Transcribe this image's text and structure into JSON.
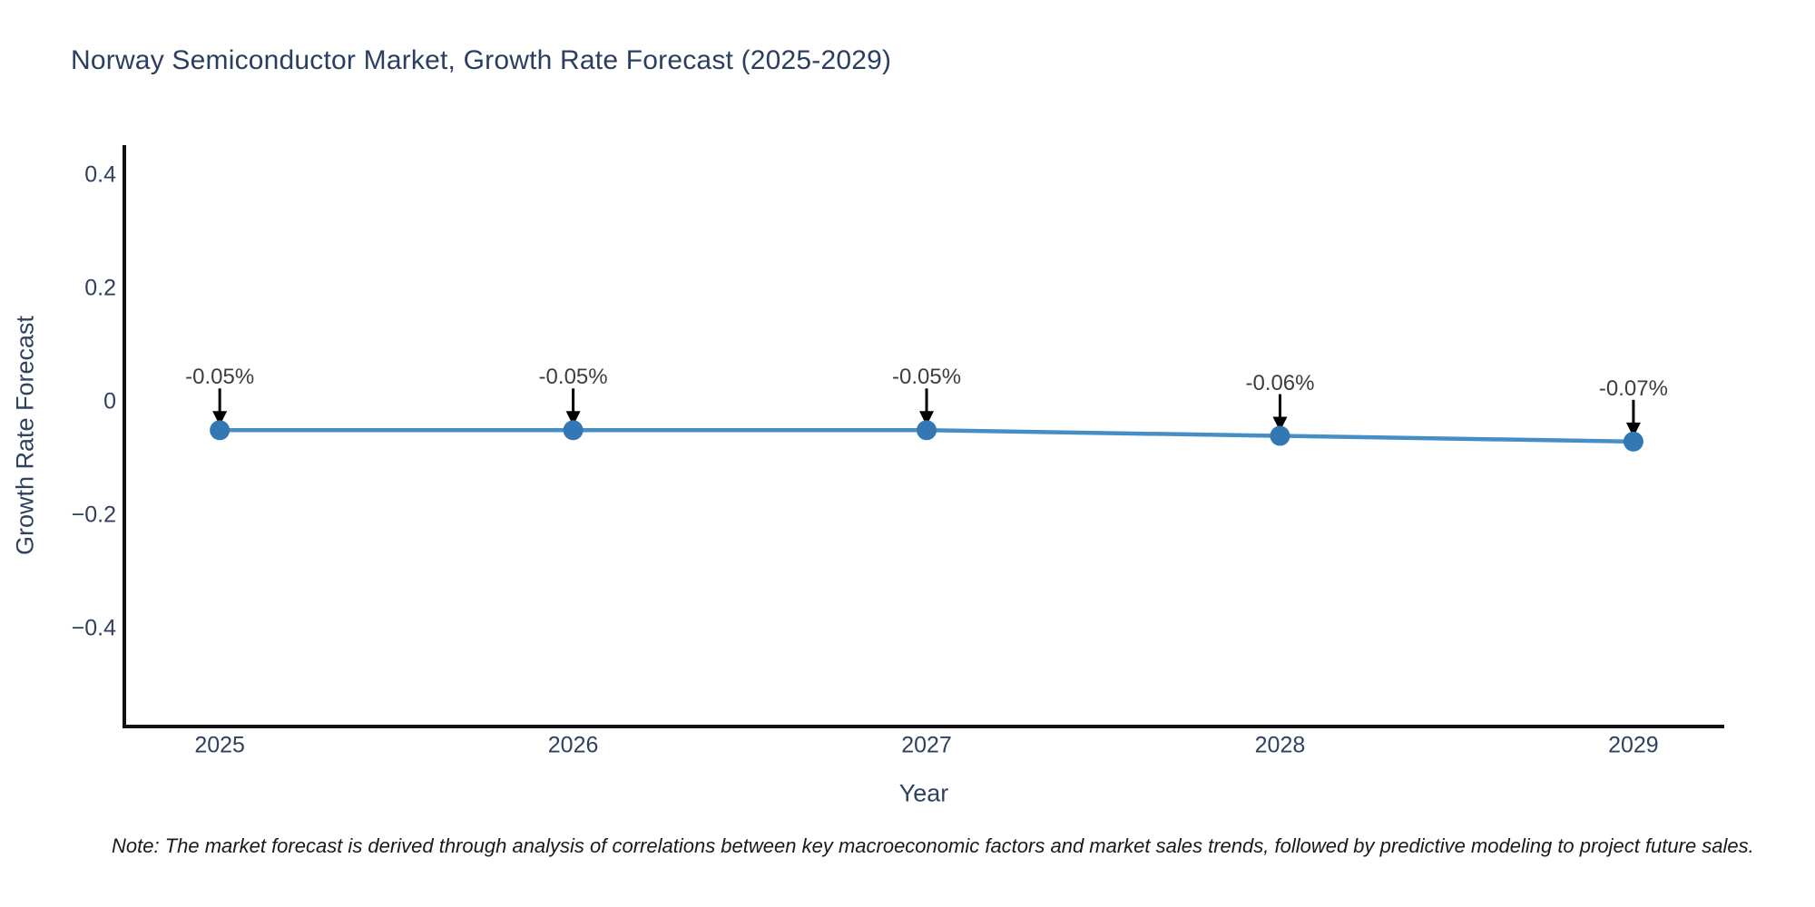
{
  "note": {
    "text": "Note: The market forecast is derived through analysis of correlations between key macroeconomic factors and market sales trends, followed by predictive modeling to project future sales."
  },
  "chart_data": {
    "type": "line",
    "title": "Norway Semiconductor Market, Growth Rate Forecast (2025-2029)",
    "xlabel": "Year",
    "ylabel": "Growth Rate Forecast",
    "x": [
      2025,
      2026,
      2027,
      2028,
      2029
    ],
    "x_tick_labels": [
      "2025",
      "2026",
      "2027",
      "2028",
      "2029"
    ],
    "series": [
      {
        "name": "Growth Rate Forecast",
        "values": [
          -0.05,
          -0.05,
          -0.05,
          -0.06,
          -0.07
        ]
      }
    ],
    "point_labels": [
      "-0.05%",
      "-0.05%",
      "-0.05%",
      "-0.06%",
      "-0.07%"
    ],
    "y_ticks": [
      {
        "value": 0.4,
        "label": "0.4"
      },
      {
        "value": 0.2,
        "label": "0.2"
      },
      {
        "value": 0,
        "label": "0"
      },
      {
        "value": -0.2,
        "label": "−0.2"
      },
      {
        "value": -0.4,
        "label": "−0.4"
      }
    ],
    "ylim": [
      -0.572,
      0.449
    ],
    "xlim": [
      2024.73,
      2029.257
    ],
    "grid": false,
    "legend": false,
    "annotations_have_arrows": true,
    "colors": {
      "line": "#458fc6",
      "marker": "#3378b4",
      "axis": "#111111",
      "tick_text": "#2f415f",
      "title_text": "#2a3f5f",
      "annotation_text": "#3d3d3d",
      "arrow": "#000000",
      "background": "#ffffff"
    }
  }
}
